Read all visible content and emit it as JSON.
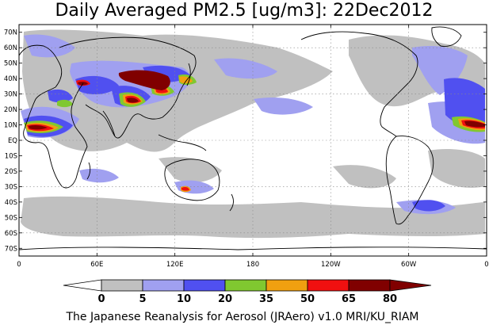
{
  "title": "Daily Averaged PM2.5 [ug/m3]: 22Dec2012",
  "credit": "The Japanese Reanalysis for Aerosol (JRAero) v1.0 MRI/KU_RIAM",
  "map": {
    "lat_labels": [
      "70N",
      "60N",
      "50N",
      "40N",
      "30N",
      "20N",
      "10N",
      "EQ",
      "10S",
      "20S",
      "30S",
      "40S",
      "50S",
      "60S",
      "70S"
    ],
    "lat_values": [
      70,
      60,
      50,
      40,
      30,
      20,
      10,
      0,
      -10,
      -20,
      -30,
      -40,
      -50,
      -60,
      -70
    ],
    "lon_labels": [
      "0",
      "60E",
      "120E",
      "180",
      "120W",
      "60W",
      "0"
    ],
    "lon_values": [
      0,
      60,
      120,
      180,
      240,
      300,
      360
    ],
    "lat_range": [
      -75,
      75
    ],
    "lon_range": [
      0,
      360
    ],
    "grid": true
  },
  "colorbar": {
    "levels": [
      "0",
      "5",
      "10",
      "20",
      "35",
      "50",
      "65",
      "80"
    ],
    "colors": [
      "#ffffff",
      "#c0c0c0",
      "#a0a0f0",
      "#5050f0",
      "#80c830",
      "#f0a010",
      "#f01010",
      "#800000"
    ]
  }
}
